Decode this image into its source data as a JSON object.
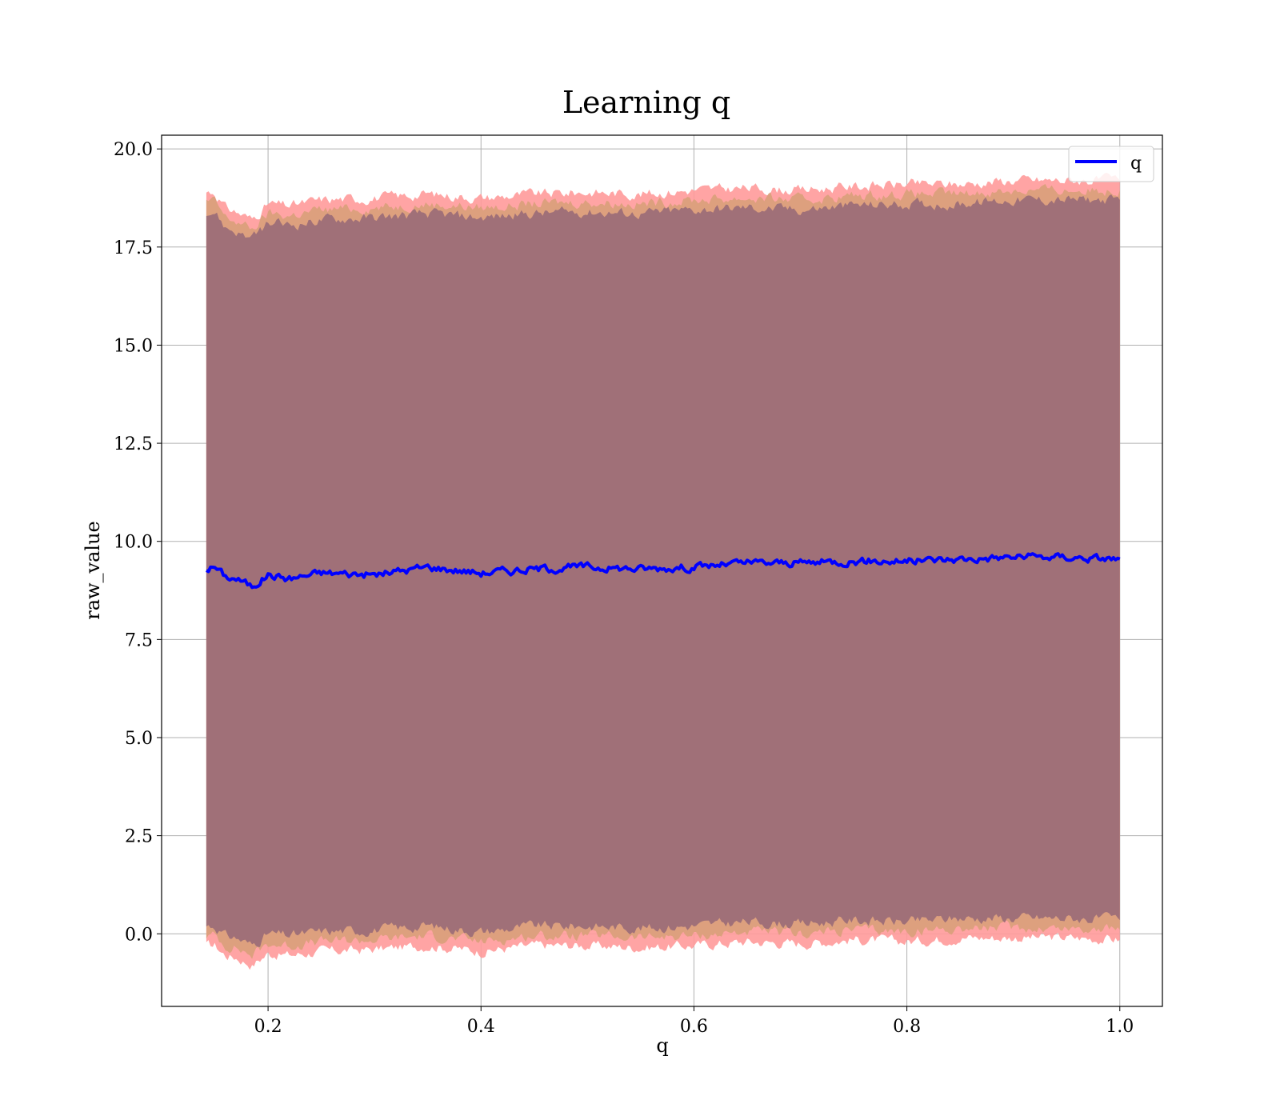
{
  "chart_data": {
    "type": "line",
    "title": "Learning q",
    "xlabel": "q",
    "ylabel": "raw_value",
    "xlim": [
      0.1,
      1.04
    ],
    "ylim": [
      -1.85,
      20.35
    ],
    "x_ticks": [
      0.2,
      0.4,
      0.6,
      0.8,
      1.0
    ],
    "x_tick_labels": [
      "0.2",
      "0.4",
      "0.6",
      "0.8",
      "1.0"
    ],
    "y_ticks": [
      0.0,
      2.5,
      5.0,
      7.5,
      10.0,
      12.5,
      15.0,
      17.5,
      20.0
    ],
    "y_tick_labels": [
      "0.0",
      "2.5",
      "5.0",
      "7.5",
      "10.0",
      "12.5",
      "15.0",
      "17.5",
      "20.0"
    ],
    "grid": true,
    "legend_position": "top-right",
    "colors": {
      "line": "#0000ff",
      "band_outer": "#ff9a9a",
      "band_middle": "#d9a07a",
      "band_inner": "#a07078"
    },
    "series": [
      {
        "name": "q",
        "x": [
          0.142,
          0.15,
          0.16,
          0.17,
          0.185,
          0.2,
          0.22,
          0.25,
          0.3,
          0.35,
          0.4,
          0.45,
          0.5,
          0.55,
          0.6,
          0.65,
          0.7,
          0.75,
          0.8,
          0.85,
          0.9,
          0.95,
          1.0
        ],
        "y": [
          9.3,
          9.35,
          9.1,
          9.05,
          8.85,
          9.15,
          9.05,
          9.2,
          9.15,
          9.35,
          9.2,
          9.3,
          9.35,
          9.3,
          9.35,
          9.45,
          9.45,
          9.5,
          9.5,
          9.55,
          9.6,
          9.6,
          9.55
        ]
      }
    ],
    "bands": [
      {
        "x": [
          0.142,
          0.15,
          0.16,
          0.17,
          0.185,
          0.2,
          0.22,
          0.25,
          0.3,
          0.35,
          0.4,
          0.45,
          0.5,
          0.55,
          0.6,
          0.65,
          0.7,
          0.75,
          0.8,
          0.85,
          0.9,
          0.95,
          1.0
        ],
        "lower": [
          -0.3,
          -0.3,
          -0.55,
          -0.6,
          -0.8,
          -0.5,
          -0.55,
          -0.45,
          -0.4,
          -0.3,
          -0.45,
          -0.3,
          -0.3,
          -0.35,
          -0.3,
          -0.2,
          -0.25,
          -0.15,
          -0.2,
          -0.1,
          -0.1,
          -0.1,
          -0.15
        ],
        "upper": [
          18.9,
          18.9,
          18.5,
          18.4,
          18.2,
          18.6,
          18.55,
          18.7,
          18.75,
          18.85,
          18.75,
          18.85,
          18.9,
          18.85,
          18.95,
          19.0,
          18.95,
          19.05,
          19.1,
          19.1,
          19.2,
          19.2,
          19.2
        ]
      },
      {
        "x": [
          0.142,
          0.15,
          0.16,
          0.17,
          0.185,
          0.2,
          0.22,
          0.25,
          0.3,
          0.35,
          0.4,
          0.45,
          0.5,
          0.55,
          0.6,
          0.65,
          0.7,
          0.75,
          0.8,
          0.85,
          0.9,
          0.95,
          1.0
        ],
        "lower": [
          -0.05,
          -0.05,
          -0.3,
          -0.35,
          -0.55,
          -0.25,
          -0.3,
          -0.2,
          -0.15,
          -0.05,
          -0.2,
          -0.05,
          -0.05,
          -0.1,
          -0.05,
          0.05,
          0.0,
          0.1,
          0.05,
          0.15,
          0.15,
          0.15,
          0.1
        ],
        "upper": [
          18.65,
          18.65,
          18.25,
          18.15,
          17.95,
          18.35,
          18.3,
          18.45,
          18.5,
          18.6,
          18.5,
          18.6,
          18.65,
          18.6,
          18.7,
          18.75,
          18.7,
          18.8,
          18.85,
          18.85,
          18.95,
          18.95,
          18.95
        ]
      },
      {
        "x": [
          0.142,
          0.15,
          0.16,
          0.17,
          0.185,
          0.2,
          0.22,
          0.25,
          0.3,
          0.35,
          0.4,
          0.45,
          0.5,
          0.55,
          0.6,
          0.65,
          0.7,
          0.75,
          0.8,
          0.85,
          0.9,
          0.95,
          1.0
        ],
        "lower": [
          0.2,
          0.2,
          -0.05,
          -0.1,
          -0.3,
          0.0,
          -0.05,
          0.05,
          0.1,
          0.2,
          0.05,
          0.2,
          0.2,
          0.15,
          0.2,
          0.3,
          0.25,
          0.35,
          0.3,
          0.4,
          0.4,
          0.4,
          0.35
        ],
        "upper": [
          18.4,
          18.4,
          18.0,
          17.9,
          17.7,
          18.1,
          18.05,
          18.2,
          18.25,
          18.35,
          18.25,
          18.35,
          18.4,
          18.35,
          18.45,
          18.5,
          18.45,
          18.55,
          18.6,
          18.6,
          18.7,
          18.7,
          18.7
        ]
      }
    ]
  },
  "legend": {
    "items": [
      {
        "label": "q"
      }
    ]
  }
}
